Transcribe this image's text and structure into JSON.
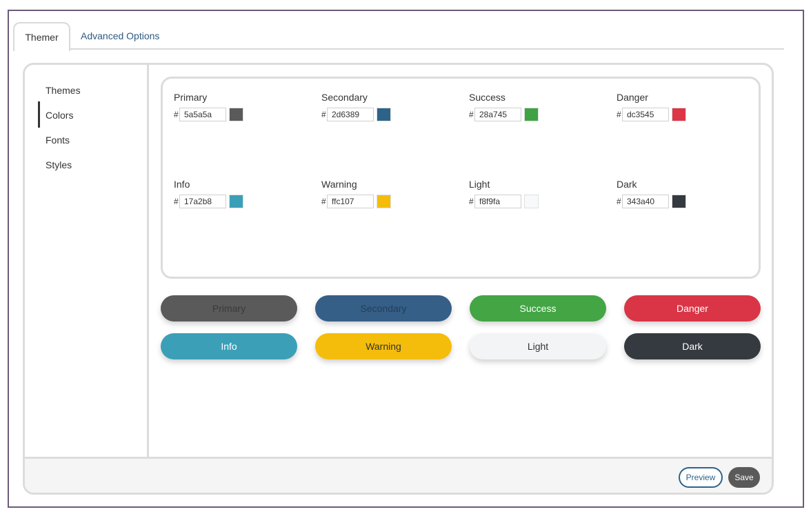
{
  "tabs": [
    {
      "label": "Themer",
      "active": true
    },
    {
      "label": "Advanced Options",
      "active": false
    }
  ],
  "sidebar": {
    "items": [
      {
        "label": "Themes",
        "active": false
      },
      {
        "label": "Colors",
        "active": true
      },
      {
        "label": "Fonts",
        "active": false
      },
      {
        "label": "Styles",
        "active": false
      }
    ]
  },
  "colors": [
    {
      "label": "Primary",
      "hash": "#",
      "value": "5a5a5a",
      "swatch": "#5a5a5a"
    },
    {
      "label": "Secondary",
      "hash": "#",
      "value": "2d6389",
      "swatch": "#2d6389"
    },
    {
      "label": "Success",
      "hash": "#",
      "value": "28a745",
      "swatch": "#3fa244"
    },
    {
      "label": "Danger",
      "hash": "#",
      "value": "dc3545",
      "swatch": "#dc3545"
    },
    {
      "label": "Info",
      "hash": "#",
      "value": "17a2b8",
      "swatch": "#3c9fb8"
    },
    {
      "label": "Warning",
      "hash": "#",
      "value": "ffc107",
      "swatch": "#f5bd0b"
    },
    {
      "label": "Light",
      "hash": "#",
      "value": "f8f9fa",
      "swatch": "#f8f9fa"
    },
    {
      "label": "Dark",
      "hash": "#",
      "value": "343a40",
      "swatch": "#343a40"
    }
  ],
  "preview_buttons": [
    {
      "label": "Primary",
      "bg": "#5a5a5a",
      "color": "#3a3a3a"
    },
    {
      "label": "Secondary",
      "bg": "#355f86",
      "color": "#243f5a"
    },
    {
      "label": "Success",
      "bg": "#43a544",
      "color": "#ffffff"
    },
    {
      "label": "Danger",
      "bg": "#d93546",
      "color": "#ffffff"
    },
    {
      "label": "Info",
      "bg": "#3c9fb8",
      "color": "#ffffff"
    },
    {
      "label": "Warning",
      "bg": "#f5bd0b",
      "color": "#333333"
    },
    {
      "label": "Light",
      "bg": "#f3f4f5",
      "color": "#333333"
    },
    {
      "label": "Dark",
      "bg": "#343a40",
      "color": "#ffffff"
    }
  ],
  "footer": {
    "preview_label": "Preview",
    "save_label": "Save"
  }
}
